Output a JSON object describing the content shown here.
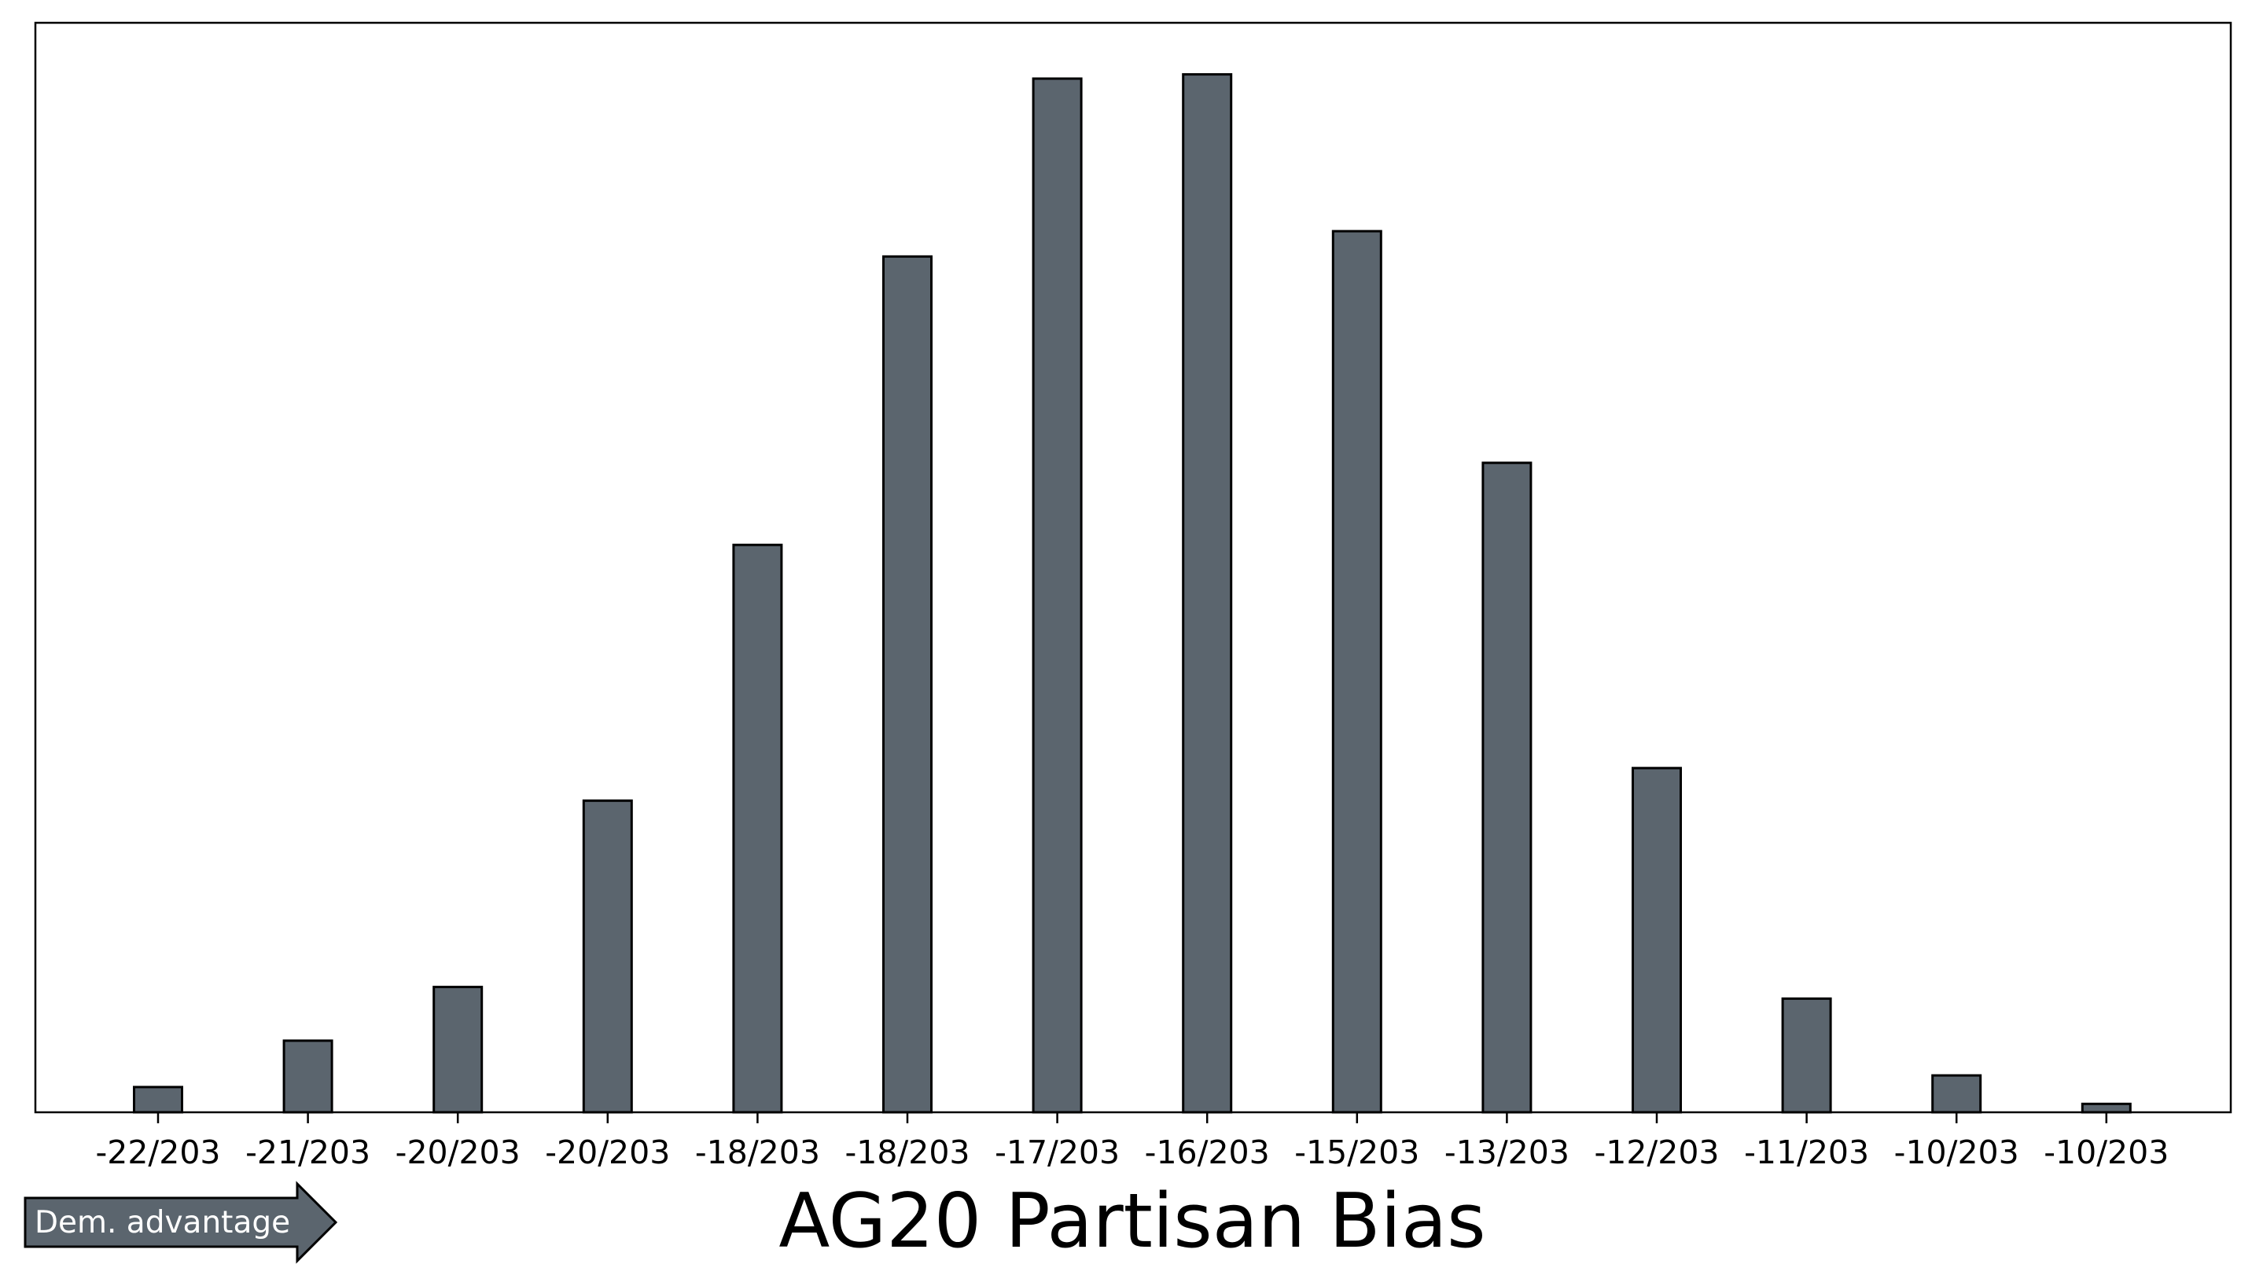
{
  "chart_data": {
    "type": "bar",
    "title": "AG20 Partisan Bias",
    "xlabel": "",
    "ylabel": "",
    "categories": [
      "-22/203",
      "-21/203",
      "-20/203",
      "-20/203",
      "-18/203",
      "-18/203",
      "-17/203",
      "-16/203",
      "-15/203",
      "-13/203",
      "-12/203",
      "-11/203",
      "-10/203",
      "-10/203"
    ],
    "values": [
      24,
      68,
      119,
      296,
      539,
      813,
      982,
      986,
      837,
      617,
      327,
      108,
      35,
      8
    ],
    "ylim": [
      0,
      1035
    ],
    "grid": false,
    "y_ticks_shown": false,
    "bar_color": "#5b656e",
    "edge_color": "#000000"
  },
  "annotation": {
    "label": "Dem. advantage",
    "fill": "#5b656e",
    "text_color": "#ffffff"
  }
}
